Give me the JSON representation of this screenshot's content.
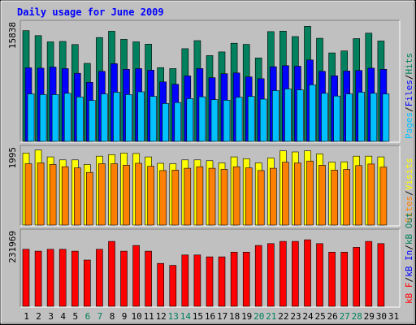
{
  "chart_data": {
    "type": "bar",
    "title": "Daily usage for June 2009",
    "categories": [
      "1",
      "2",
      "3",
      "4",
      "5",
      "6",
      "7",
      "8",
      "9",
      "10",
      "11",
      "12",
      "13",
      "14",
      "15",
      "16",
      "17",
      "18",
      "19",
      "20",
      "21",
      "22",
      "23",
      "24",
      "25",
      "26",
      "27",
      "28",
      "29",
      "30",
      "31"
    ],
    "weekend_days": [
      "6",
      "7",
      "13",
      "14",
      "20",
      "21",
      "27",
      "28"
    ],
    "colors": {
      "hits": "#00805c",
      "files": "#0000ff",
      "pages": "#00c0ff",
      "visits": "#ffff00",
      "sites": "#ff8000",
      "kbin": "#0000ff",
      "kbout": "#00805c",
      "kbf": "#ff0000",
      "weekend_label": "#00805c",
      "title": "#0000ff",
      "panel_bg": "#c0c0c0"
    },
    "panels": [
      {
        "max_label": "15838",
        "ymax": 15838,
        "legend": [
          {
            "text": "Pages",
            "color": "#00c0ff"
          },
          {
            "text": "/",
            "color": "#000000"
          },
          {
            "text": "Files",
            "color": "#0000ff"
          },
          {
            "text": "/",
            "color": "#000000"
          },
          {
            "text": "Hits",
            "color": "#00805c"
          }
        ],
        "series": [
          {
            "name": "Hits",
            "color": "#00805c",
            "values": [
              14990,
              14320,
              13470,
              13530,
              13110,
              10560,
              14060,
              14910,
              13810,
              13470,
              13170,
              9990,
              9850,
              12550,
              13640,
              11620,
              12110,
              13290,
              13130,
              11300,
              14860,
              14920,
              14190,
              15580,
              13960,
              11980,
              12240,
              13910,
              14650,
              13590
            ]
          },
          {
            "name": "Files",
            "color": "#0000ff",
            "values": [
              9970,
              9910,
              10060,
              9850,
              9220,
              8000,
              9480,
              10510,
              9760,
              9850,
              9650,
              8050,
              7730,
              8860,
              9850,
              8620,
              9160,
              9260,
              8730,
              8480,
              10110,
              10250,
              10170,
              11020,
              9480,
              8880,
              9530,
              9600,
              9910,
              9760
            ]
          },
          {
            "name": "Pages",
            "color": "#00c0ff",
            "values": [
              6420,
              6340,
              6340,
              6510,
              6020,
              5540,
              6420,
              6650,
              6340,
              6710,
              6090,
              5130,
              5260,
              5790,
              6040,
              5650,
              5580,
              5980,
              6090,
              5720,
              6870,
              7090,
              6970,
              7660,
              6510,
              6140,
              6420,
              6650,
              6510,
              6420
            ]
          }
        ]
      },
      {
        "max_label": "1995",
        "ymax": 1995,
        "legend": [
          {
            "text": "Sites",
            "color": "#ff8000"
          },
          {
            "text": "/",
            "color": "#000000"
          },
          {
            "text": "Visits",
            "color": "#ffff00"
          }
        ],
        "series": [
          {
            "name": "Visits",
            "color": "#ffff00",
            "values": [
              1900,
              1980,
              1800,
              1720,
              1720,
              1600,
              1820,
              1860,
              1900,
              1890,
              1800,
              1630,
              1620,
              1720,
              1720,
              1700,
              1640,
              1800,
              1750,
              1640,
              1770,
              1960,
              1930,
              1960,
              1880,
              1660,
              1670,
              1820,
              1820,
              1800
            ]
          },
          {
            "name": "Sites",
            "color": "#ff8000",
            "values": [
              1620,
              1640,
              1600,
              1540,
              1510,
              1390,
              1620,
              1620,
              1580,
              1630,
              1550,
              1440,
              1450,
              1500,
              1540,
              1500,
              1470,
              1540,
              1510,
              1440,
              1500,
              1660,
              1640,
              1690,
              1580,
              1450,
              1470,
              1570,
              1610,
              1530
            ]
          }
        ]
      },
      {
        "max_label": "231969",
        "ymax": 231969,
        "legend": [
          {
            "text": "kB F",
            "color": "#ff0000"
          },
          {
            "text": "/",
            "color": "#000000"
          },
          {
            "text": "kB In",
            "color": "#0000ff"
          },
          {
            "text": "/",
            "color": "#000000"
          },
          {
            "text": "kB Out",
            "color": "#00805c"
          }
        ],
        "series": [
          {
            "name": "kB F",
            "color": "#ff0000",
            "values": [
              181000,
              175000,
              181000,
              181000,
              175000,
              147000,
              181000,
              206000,
              175000,
              193000,
              175000,
              136000,
              130000,
              163000,
              163000,
              157000,
              157000,
              172000,
              172000,
              193000,
              199000,
              206000,
              206000,
              211000,
              199000,
              172000,
              172000,
              187000,
              206000,
              199000
            ]
          }
        ]
      }
    ]
  }
}
